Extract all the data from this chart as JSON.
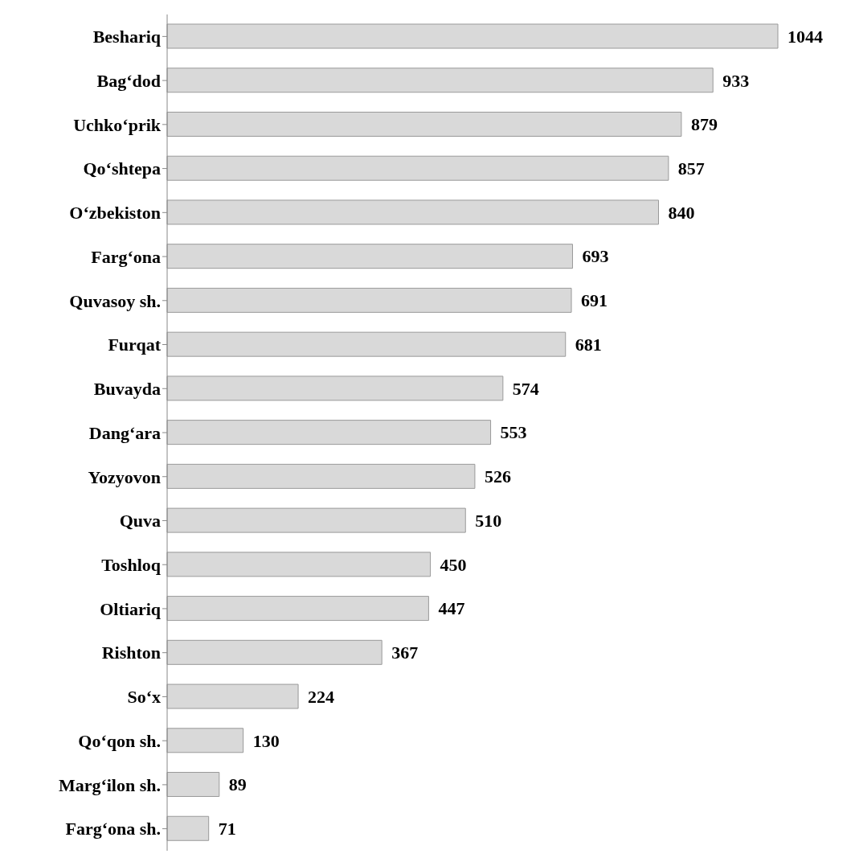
{
  "chart_data": {
    "type": "bar",
    "orientation": "horizontal",
    "categories": [
      "Beshariq",
      "Bag‘dod",
      "Uchko‘prik",
      "Qo‘shtepa",
      "O‘zbekiston",
      "Farg‘ona",
      "Quvasoy sh.",
      "Furqat",
      "Buvayda",
      "Dang‘ara",
      "Yozyovon",
      "Quva",
      "Toshloq",
      "Oltiariq",
      "Rishton",
      "So‘x",
      "Qo‘qon sh.",
      "Marg‘ilon sh.",
      "Farg‘ona sh."
    ],
    "values": [
      1044,
      933,
      879,
      857,
      840,
      693,
      691,
      681,
      574,
      553,
      526,
      510,
      450,
      447,
      367,
      224,
      130,
      89,
      71
    ],
    "color": "#d9d9d9",
    "data_labels": true
  }
}
